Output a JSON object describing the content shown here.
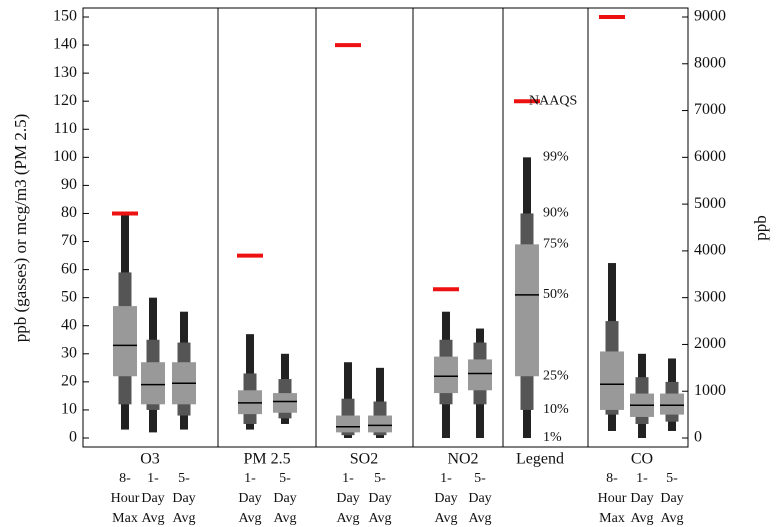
{
  "chart_data": {
    "type": "box",
    "ylabel": "ppb (gasses) or mcg/m3 (PM 2.5)",
    "y2label": "ppb",
    "ylim": [
      0,
      150
    ],
    "yticks": [
      0,
      10,
      20,
      30,
      40,
      50,
      60,
      70,
      80,
      90,
      100,
      110,
      120,
      130,
      140,
      150
    ],
    "y2lim": [
      0,
      9000
    ],
    "y2ticks": [
      0,
      1000,
      2000,
      3000,
      4000,
      5000,
      6000,
      7000,
      8000,
      9000
    ],
    "naaqs_color": "#ee1111",
    "panels": [
      {
        "name": "O3",
        "boxes": [
          {
            "label": [
              "8-",
              "Hour",
              "Max"
            ],
            "values": [
              3,
              12,
              22,
              33,
              47,
              59,
              80
            ],
            "naaqs": 80
          },
          {
            "label": [
              "1-",
              "Day",
              "Avg"
            ],
            "values": [
              2,
              10,
              12,
              19,
              27,
              35,
              50
            ]
          },
          {
            "label": [
              "5-",
              "Day",
              "Avg"
            ],
            "values": [
              3,
              8,
              12,
              19.5,
              27,
              34,
              45
            ]
          }
        ]
      },
      {
        "name": "PM 2.5",
        "boxes": [
          {
            "label": [
              "1-",
              "Day",
              "Avg"
            ],
            "values": [
              3,
              5,
              8.5,
              12.5,
              17,
              23,
              37
            ],
            "naaqs": 65
          },
          {
            "label": [
              "5-",
              "Day",
              "Avg"
            ],
            "values": [
              5,
              7,
              9,
              13,
              16,
              21,
              30
            ]
          }
        ]
      },
      {
        "name": "SO2",
        "boxes": [
          {
            "label": [
              "1-",
              "Day",
              "Avg"
            ],
            "values": [
              0,
              1,
              2,
              4,
              8,
              14,
              27
            ],
            "naaqs": 140
          },
          {
            "label": [
              "5-",
              "Day",
              "Avg"
            ],
            "values": [
              0,
              1,
              2,
              4.5,
              8,
              13,
              25
            ]
          }
        ]
      },
      {
        "name": "NO2",
        "boxes": [
          {
            "label": [
              "1-",
              "Day",
              "Avg"
            ],
            "values": [
              0,
              12,
              16,
              22,
              29,
              35,
              45
            ],
            "naaqs": 53
          },
          {
            "label": [
              "5-",
              "Day",
              "Avg"
            ],
            "values": [
              0,
              12,
              17,
              23,
              28,
              34,
              39
            ]
          }
        ]
      },
      {
        "name": "Legend",
        "percent_labels": [
          "1%",
          "10%",
          "25%",
          "50%",
          "75%",
          "90%",
          "99%"
        ],
        "naaqs_label": "NAAQS",
        "boxes": [
          {
            "values": [
              0,
              10,
              22,
              51,
              69,
              80,
              100
            ],
            "naaqs": 120
          }
        ]
      },
      {
        "name": "CO",
        "axis": "y2",
        "boxes": [
          {
            "label": [
              "8-",
              "Hour",
              "Max"
            ],
            "values": [
              150,
              500,
              600,
              1150,
              1850,
              2500,
              3740
            ],
            "naaqs": 9000
          },
          {
            "label": [
              "1-",
              "Day",
              "Avg"
            ],
            "values": [
              0,
              300,
              450,
              700,
              950,
              1300,
              1800
            ]
          },
          {
            "label": [
              "5-",
              "Day",
              "Avg"
            ],
            "values": [
              150,
              350,
              500,
              700,
              950,
              1200,
              1700
            ]
          }
        ]
      }
    ]
  }
}
